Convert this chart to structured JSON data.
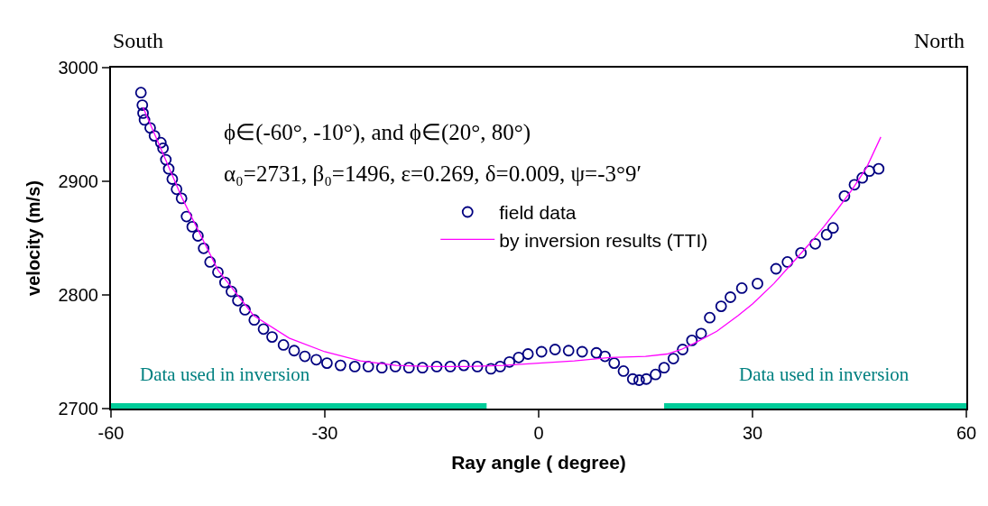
{
  "chart_data": {
    "type": "scatter",
    "xlabel": "Ray angle ( degree)",
    "ylabel": "velocity (m/s)",
    "xlim": [
      -60,
      60
    ],
    "xticks": [
      -60,
      -30,
      0,
      30,
      60
    ],
    "ylim": [
      2700,
      3000
    ],
    "yticks": [
      2700,
      2800,
      2900,
      3000
    ],
    "grid": false,
    "legend": "top",
    "annotations": [
      "South",
      "North",
      "ϕ∈(-60°, -10°), and ϕ∈(20°, 80°)",
      "α₀=2731, β₀=1496, ε=0.269, δ=0.009, ψ=-3°9′",
      {
        "text": "Data used in inversion",
        "x": -44,
        "y": 2700
      },
      {
        "text": "Data used in inversion",
        "x": 40,
        "y": 2700
      }
    ],
    "series": [
      {
        "name": "field data",
        "marker": "circle",
        "color": "#000080",
        "x": [
          -55.8,
          -55.6,
          -55.5,
          -55.3,
          -54.5,
          -53.9,
          -53,
          -52.7,
          -52.3,
          -51.9,
          -51.4,
          -50.8,
          -50.1,
          -49.4,
          -48.6,
          -47.8,
          -47,
          -46.1,
          -45,
          -44,
          -43.1,
          -42.2,
          -41.2,
          -39.9,
          -38.6,
          -37.4,
          -35.8,
          -34.3,
          -32.8,
          -31.2,
          -29.7,
          -27.8,
          -25.8,
          -23.9,
          -22,
          -20.1,
          -18.2,
          -16.3,
          -14.3,
          -12.4,
          -10.5,
          -8.6,
          -6.7,
          -5.4,
          -4.1,
          -2.8,
          -1.5,
          0.4,
          2.3,
          4.2,
          6.1,
          8.1,
          9.3,
          10.6,
          11.9,
          13.2,
          14.1,
          15.1,
          16.4,
          17.6,
          18.9,
          20.2,
          21.5,
          22.8,
          24,
          25.6,
          26.9,
          28.5,
          30.7,
          33.3,
          34.9,
          36.8,
          38.8,
          40.4,
          41.3,
          42.9,
          44.3,
          45.4,
          46.4,
          47.7
        ],
        "values": [
          2978,
          2967,
          2960,
          2954,
          2947,
          2940,
          2934,
          2929,
          2919,
          2911,
          2902,
          2893,
          2885,
          2869,
          2860,
          2852,
          2841,
          2829,
          2820,
          2811,
          2803,
          2795,
          2787,
          2778,
          2770,
          2763,
          2756,
          2751,
          2746,
          2743,
          2740,
          2738,
          2737,
          2737,
          2736,
          2737,
          2736,
          2736,
          2737,
          2737,
          2738,
          2737,
          2735,
          2737,
          2741,
          2745,
          2748,
          2750,
          2752,
          2751,
          2750,
          2749,
          2746,
          2740,
          2733,
          2726,
          2725,
          2726,
          2730,
          2736,
          2744,
          2752,
          2760,
          2766,
          2780,
          2790,
          2798,
          2806,
          2810,
          2823,
          2829,
          2837,
          2845,
          2853,
          2859,
          2887,
          2897,
          2903,
          2909,
          2911
        ]
      },
      {
        "name": "by inversion results (TTI)",
        "type": "line",
        "color": "#ff00ff",
        "x": [
          -55.5,
          -50,
          -45,
          -40,
          -35,
          -30,
          -25,
          -20,
          -15,
          -10,
          -5,
          0,
          5,
          10,
          15,
          18,
          20,
          22,
          25,
          28,
          30,
          33,
          35,
          38,
          40,
          42,
          44,
          46,
          48
        ],
        "values": [
          2965,
          2885,
          2822,
          2782,
          2762,
          2750,
          2742,
          2738,
          2737,
          2737,
          2738,
          2740,
          2742,
          2745,
          2746,
          2748,
          2752,
          2758,
          2768,
          2782,
          2792,
          2810,
          2824,
          2845,
          2860,
          2876,
          2893,
          2912,
          2939
        ]
      },
      {
        "type": "line",
        "color": "#00cc99",
        "x": [
          -60,
          -7.3,
          null,
          17.6,
          60
        ],
        "values": [
          2700,
          2700,
          null,
          2700,
          2700
        ]
      }
    ]
  }
}
